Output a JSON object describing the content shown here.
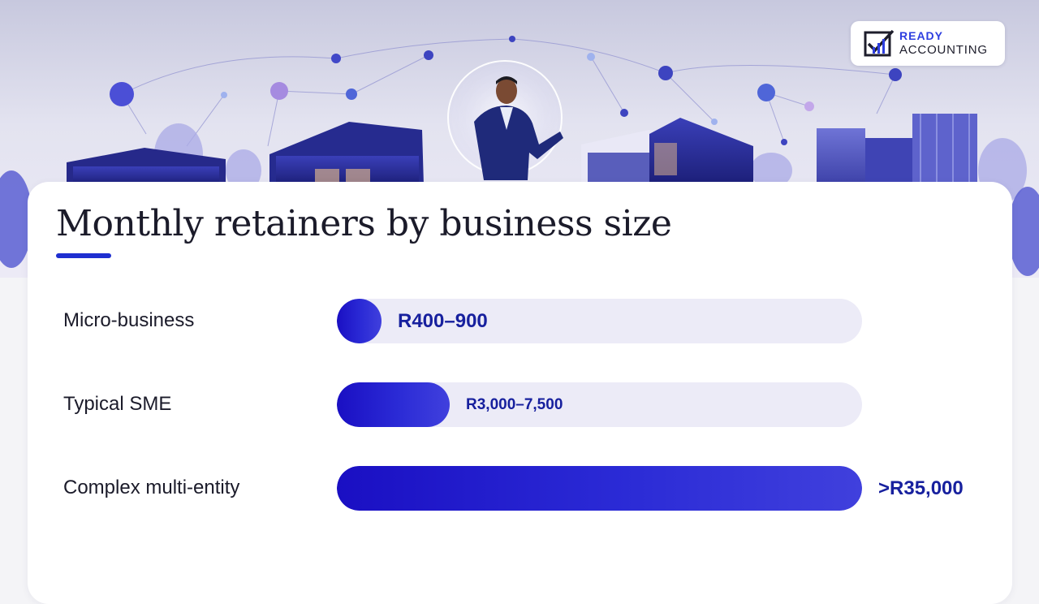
{
  "brand": {
    "line1": "READY",
    "line2": "ACCOUNTING",
    "accent": "#2d3ee0"
  },
  "title": "Monthly retainers by business size",
  "colors": {
    "bar_fill": "#1a0fc3",
    "bar_track": "#ecebf7",
    "value_text": "#17209e",
    "title_rule": "#1e2fd0"
  },
  "icons": [
    "ready-accounting-logo-icon"
  ],
  "chart_data": {
    "type": "bar",
    "orientation": "horizontal",
    "categories": [
      "Micro-business",
      "Typical SME",
      "Complex multi-entity"
    ],
    "values": [
      900,
      7500,
      35000
    ],
    "value_labels": [
      "R400–900",
      "R3,000–7,500",
      ">R35,000"
    ],
    "xlim": [
      0,
      35000
    ],
    "grid": false,
    "legend": false
  }
}
